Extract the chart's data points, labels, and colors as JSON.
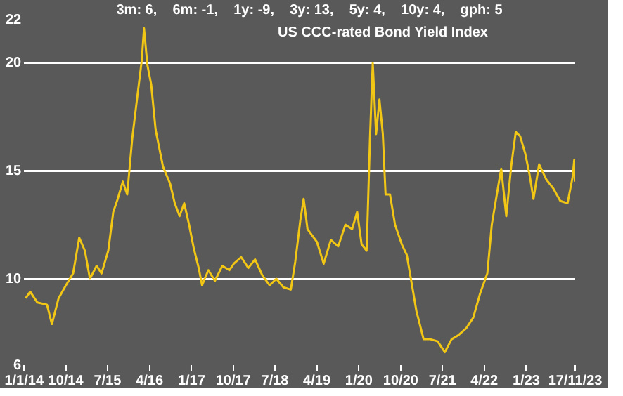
{
  "chart_data": {
    "type": "line",
    "title": "US CCC-rated Bond Yield Index",
    "subtitle": "3m: 6,    6m: -1,    1y: -9,    3y: 13,    5y: 4,    10y: 4,    gph: 5",
    "x": [
      "2014-01-12",
      "2014-02-10",
      "2014-03-29",
      "2014-05-31",
      "2014-07-02",
      "2014-08-15",
      "2014-10-02",
      "2014-11-18",
      "2014-12-28",
      "2015-02-03",
      "2015-03-08",
      "2015-04-21",
      "2015-05-23",
      "2015-07-06",
      "2015-08-08",
      "2015-09-06",
      "2015-10-09",
      "2015-11-07",
      "2015-12-10",
      "2016-01-08",
      "2016-02-10",
      "2016-02-25",
      "2016-03-18",
      "2016-04-12",
      "2016-05-11",
      "2016-06-28",
      "2016-08-14",
      "2016-09-13",
      "2016-10-15",
      "2016-11-14",
      "2016-12-16",
      "2017-01-16",
      "2017-02-17",
      "2017-03-11",
      "2017-04-21",
      "2017-06-03",
      "2017-07-21",
      "2017-09-06",
      "2017-10-05",
      "2017-11-22",
      "2018-01-08",
      "2018-02-21",
      "2018-04-10",
      "2018-05-27",
      "2018-07-10",
      "2018-08-26",
      "2018-10-13",
      "2018-11-11",
      "2018-12-14",
      "2019-01-05",
      "2019-01-30",
      "2019-04-02",
      "2019-05-16",
      "2019-07-02",
      "2019-08-19",
      "2019-10-05",
      "2019-11-18",
      "2019-12-21",
      "2020-01-19",
      "2020-02-21",
      "2020-03-14",
      "2020-04-01",
      "2020-04-23",
      "2020-05-15",
      "2020-06-06",
      "2020-06-24",
      "2020-07-23",
      "2020-08-25",
      "2020-10-08",
      "2020-11-10",
      "2020-12-09",
      "2021-01-12",
      "2021-02-28",
      "2021-04-13",
      "2021-05-31",
      "2021-07-17",
      "2021-08-30",
      "2021-10-16",
      "2021-12-03",
      "2022-01-19",
      "2022-03-04",
      "2022-04-21",
      "2022-05-20",
      "2022-06-22",
      "2022-07-21",
      "2022-08-23",
      "2022-09-24",
      "2022-10-24",
      "2022-11-22",
      "2022-12-25",
      "2023-01-23",
      "2023-02-17",
      "2023-03-26",
      "2023-05-12",
      "2023-06-25",
      "2023-08-12",
      "2023-09-28",
      "2023-10-31",
      "2023-11-11",
      "2023-11-17"
    ],
    "series": [
      {
        "color": "#f2c614",
        "values": [
          9.1,
          9.4,
          8.9,
          8.8,
          7.9,
          9.1,
          9.7,
          10.25,
          11.9,
          11.3,
          10.0,
          10.6,
          10.25,
          11.3,
          13.1,
          13.7,
          14.5,
          13.9,
          16.5,
          18.2,
          20.1,
          21.6,
          19.9,
          19.0,
          16.9,
          15.2,
          14.4,
          13.5,
          12.9,
          13.5,
          12.5,
          11.4,
          10.5,
          9.7,
          10.4,
          9.9,
          10.6,
          10.4,
          10.7,
          11.0,
          10.5,
          10.9,
          10.15,
          9.7,
          10.0,
          9.6,
          9.5,
          10.8,
          12.7,
          13.7,
          12.3,
          11.7,
          10.7,
          11.8,
          11.5,
          12.5,
          12.3,
          13.1,
          11.6,
          11.3,
          16.5,
          20.0,
          16.7,
          18.3,
          16.7,
          13.9,
          13.9,
          12.5,
          11.6,
          11.1,
          9.9,
          8.5,
          7.2,
          7.2,
          7.1,
          6.6,
          7.2,
          7.4,
          7.7,
          8.2,
          9.3,
          10.25,
          12.5,
          13.9,
          15.1,
          12.9,
          15.2,
          16.8,
          16.6,
          15.8,
          14.8,
          13.7,
          15.3,
          14.6,
          14.2,
          13.6,
          13.5,
          14.7,
          15.5,
          14.5
        ]
      }
    ],
    "xlim": [
      "2014-01-01",
      "2023-11-17"
    ],
    "xticks": [
      {
        "value": "2014-01-01",
        "label": "1/1/14"
      },
      {
        "value": "2014-10-01",
        "label": "10/14"
      },
      {
        "value": "2015-07-01",
        "label": "7/15"
      },
      {
        "value": "2016-04-01",
        "label": "4/16"
      },
      {
        "value": "2017-01-01",
        "label": "1/17"
      },
      {
        "value": "2017-10-01",
        "label": "10/17"
      },
      {
        "value": "2018-07-01",
        "label": "7/18"
      },
      {
        "value": "2019-04-01",
        "label": "4/19"
      },
      {
        "value": "2020-01-01",
        "label": "1/20"
      },
      {
        "value": "2020-10-01",
        "label": "10/20"
      },
      {
        "value": "2021-07-01",
        "label": "7/21"
      },
      {
        "value": "2022-04-01",
        "label": "4/22"
      },
      {
        "value": "2023-01-01",
        "label": "1/23"
      },
      {
        "value": "2023-11-17",
        "label": "17/11/23"
      }
    ],
    "ylim": [
      6,
      22
    ],
    "yticks": [
      6,
      10,
      15,
      20,
      22
    ],
    "grid": "y",
    "legend": false,
    "marker": "none",
    "line_style": "solid"
  }
}
